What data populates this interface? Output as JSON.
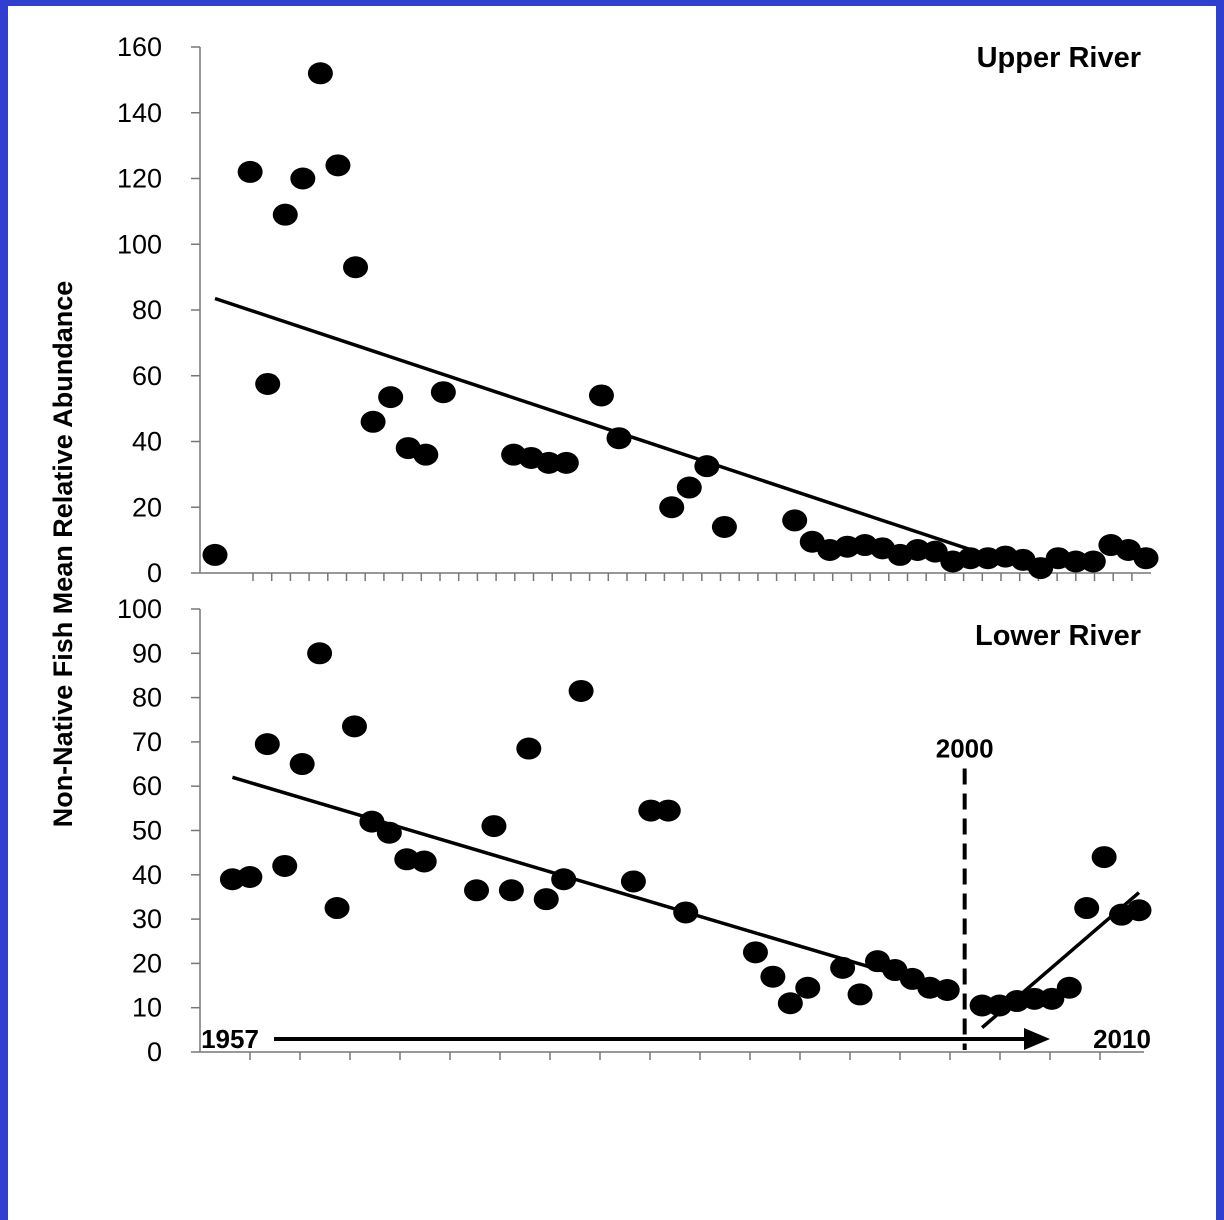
{
  "chart_data": [
    {
      "type": "scatter",
      "title": "Upper River",
      "ylabel": "Non-Native Fish Mean Relative Abundance",
      "ylim": [
        0,
        160
      ],
      "yticks": [
        0,
        20,
        40,
        60,
        80,
        100,
        120,
        140,
        160
      ],
      "xlim": [
        1956,
        2010
      ],
      "grid": false,
      "series": [
        {
          "points": [
            [
              1957,
              5.5
            ],
            [
              1959,
              122
            ],
            [
              1960,
              57.5
            ],
            [
              1961,
              109
            ],
            [
              1962,
              120
            ],
            [
              1963,
              152
            ],
            [
              1964,
              124
            ],
            [
              1965,
              93
            ],
            [
              1966,
              46
            ],
            [
              1967,
              53.5
            ],
            [
              1968,
              38
            ],
            [
              1969,
              36
            ],
            [
              1970,
              55
            ],
            [
              1974,
              36
            ],
            [
              1975,
              35
            ],
            [
              1976,
              33.5
            ],
            [
              1977,
              33.5
            ],
            [
              1979,
              54
            ],
            [
              1980,
              41
            ],
            [
              1983,
              20
            ],
            [
              1984,
              26
            ],
            [
              1985,
              32.5
            ],
            [
              1986,
              14
            ],
            [
              1990,
              16
            ],
            [
              1991,
              9.5
            ],
            [
              1992,
              7
            ],
            [
              1993,
              8
            ],
            [
              1994,
              8.5
            ],
            [
              1995,
              7.5
            ],
            [
              1996,
              5.5
            ],
            [
              1997,
              7
            ],
            [
              1998,
              6.5
            ],
            [
              1999,
              3.5
            ],
            [
              2000,
              4.5
            ],
            [
              2001,
              4.5
            ],
            [
              2002,
              5
            ],
            [
              2003,
              4
            ],
            [
              2004,
              1.5
            ],
            [
              2005,
              4.5
            ],
            [
              2006,
              3.5
            ],
            [
              2007,
              3.5
            ],
            [
              2008,
              8.5
            ],
            [
              2009,
              7
            ],
            [
              2010,
              4.5
            ]
          ]
        }
      ],
      "trendlines": [
        {
          "x": [
            1957,
            2004
          ],
          "y": [
            83.5,
            0
          ]
        }
      ]
    },
    {
      "type": "scatter",
      "title": "Lower River",
      "ylim": [
        0,
        100
      ],
      "yticks": [
        0,
        10,
        20,
        30,
        40,
        50,
        60,
        70,
        80,
        90,
        100
      ],
      "xlim": [
        1956,
        2010
      ],
      "grid": false,
      "series": [
        {
          "points": [
            [
              1958,
              39
            ],
            [
              1959,
              39.5
            ],
            [
              1960,
              69.5
            ],
            [
              1961,
              42
            ],
            [
              1962,
              65
            ],
            [
              1963,
              90
            ],
            [
              1964,
              32.5
            ],
            [
              1965,
              73.5
            ],
            [
              1966,
              52
            ],
            [
              1967,
              49.5
            ],
            [
              1968,
              43.5
            ],
            [
              1969,
              43
            ],
            [
              1972,
              36.5
            ],
            [
              1973,
              51
            ],
            [
              1974,
              36.5
            ],
            [
              1975,
              68.5
            ],
            [
              1976,
              34.5
            ],
            [
              1977,
              39
            ],
            [
              1978,
              81.5
            ],
            [
              1981,
              38.5
            ],
            [
              1982,
              54.5
            ],
            [
              1983,
              54.5
            ],
            [
              1984,
              31.5
            ],
            [
              1988,
              22.5
            ],
            [
              1989,
              17
            ],
            [
              1990,
              11
            ],
            [
              1991,
              14.5
            ],
            [
              1993,
              19
            ],
            [
              1994,
              13
            ],
            [
              1995,
              20.5
            ],
            [
              1996,
              18.5
            ],
            [
              1997,
              16.5
            ],
            [
              1998,
              14.5
            ],
            [
              1999,
              14
            ],
            [
              2001,
              10.5
            ],
            [
              2002,
              10.5
            ],
            [
              2003,
              11.5
            ],
            [
              2004,
              12
            ],
            [
              2005,
              12
            ],
            [
              2006,
              14.5
            ],
            [
              2007,
              32.5
            ],
            [
              2008,
              44
            ],
            [
              2009,
              31
            ],
            [
              2010,
              32
            ]
          ]
        }
      ],
      "trendlines": [
        {
          "x": [
            1958,
            1999
          ],
          "y": [
            62,
            14
          ]
        },
        {
          "x": [
            2001,
            2010
          ],
          "y": [
            5.5,
            36
          ]
        }
      ],
      "annotations": [
        {
          "x": 2000,
          "label": "2000",
          "style": "dashed-vertical-line"
        }
      ]
    }
  ],
  "xaxis": {
    "start_label": "1957",
    "end_label": "2010"
  },
  "colors": {
    "background_border": "#2f3fd0",
    "marker": "#000000"
  }
}
